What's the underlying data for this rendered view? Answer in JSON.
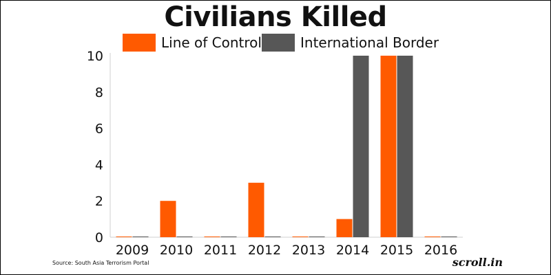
{
  "chart_data": {
    "type": "bar",
    "title": "Civilians Killed",
    "categories": [
      "2009",
      "2010",
      "2011",
      "2012",
      "2013",
      "2014",
      "2015",
      "2016"
    ],
    "series": [
      {
        "name": "Line of Control",
        "color": "#ff5a00",
        "values": [
          0,
          2,
          0,
          3,
          0,
          1,
          10,
          0
        ]
      },
      {
        "name": "International Border",
        "color": "#575757",
        "values": [
          0,
          0,
          0,
          0,
          0,
          10,
          10,
          0
        ]
      }
    ],
    "ylim": [
      0,
      10
    ],
    "yticks": [
      "0",
      "2",
      "4",
      "6",
      "8",
      "10"
    ],
    "grid": false,
    "legend": "top"
  },
  "source": "Source: South Asia Terrorism Portal",
  "logo_text": "scroll.in"
}
